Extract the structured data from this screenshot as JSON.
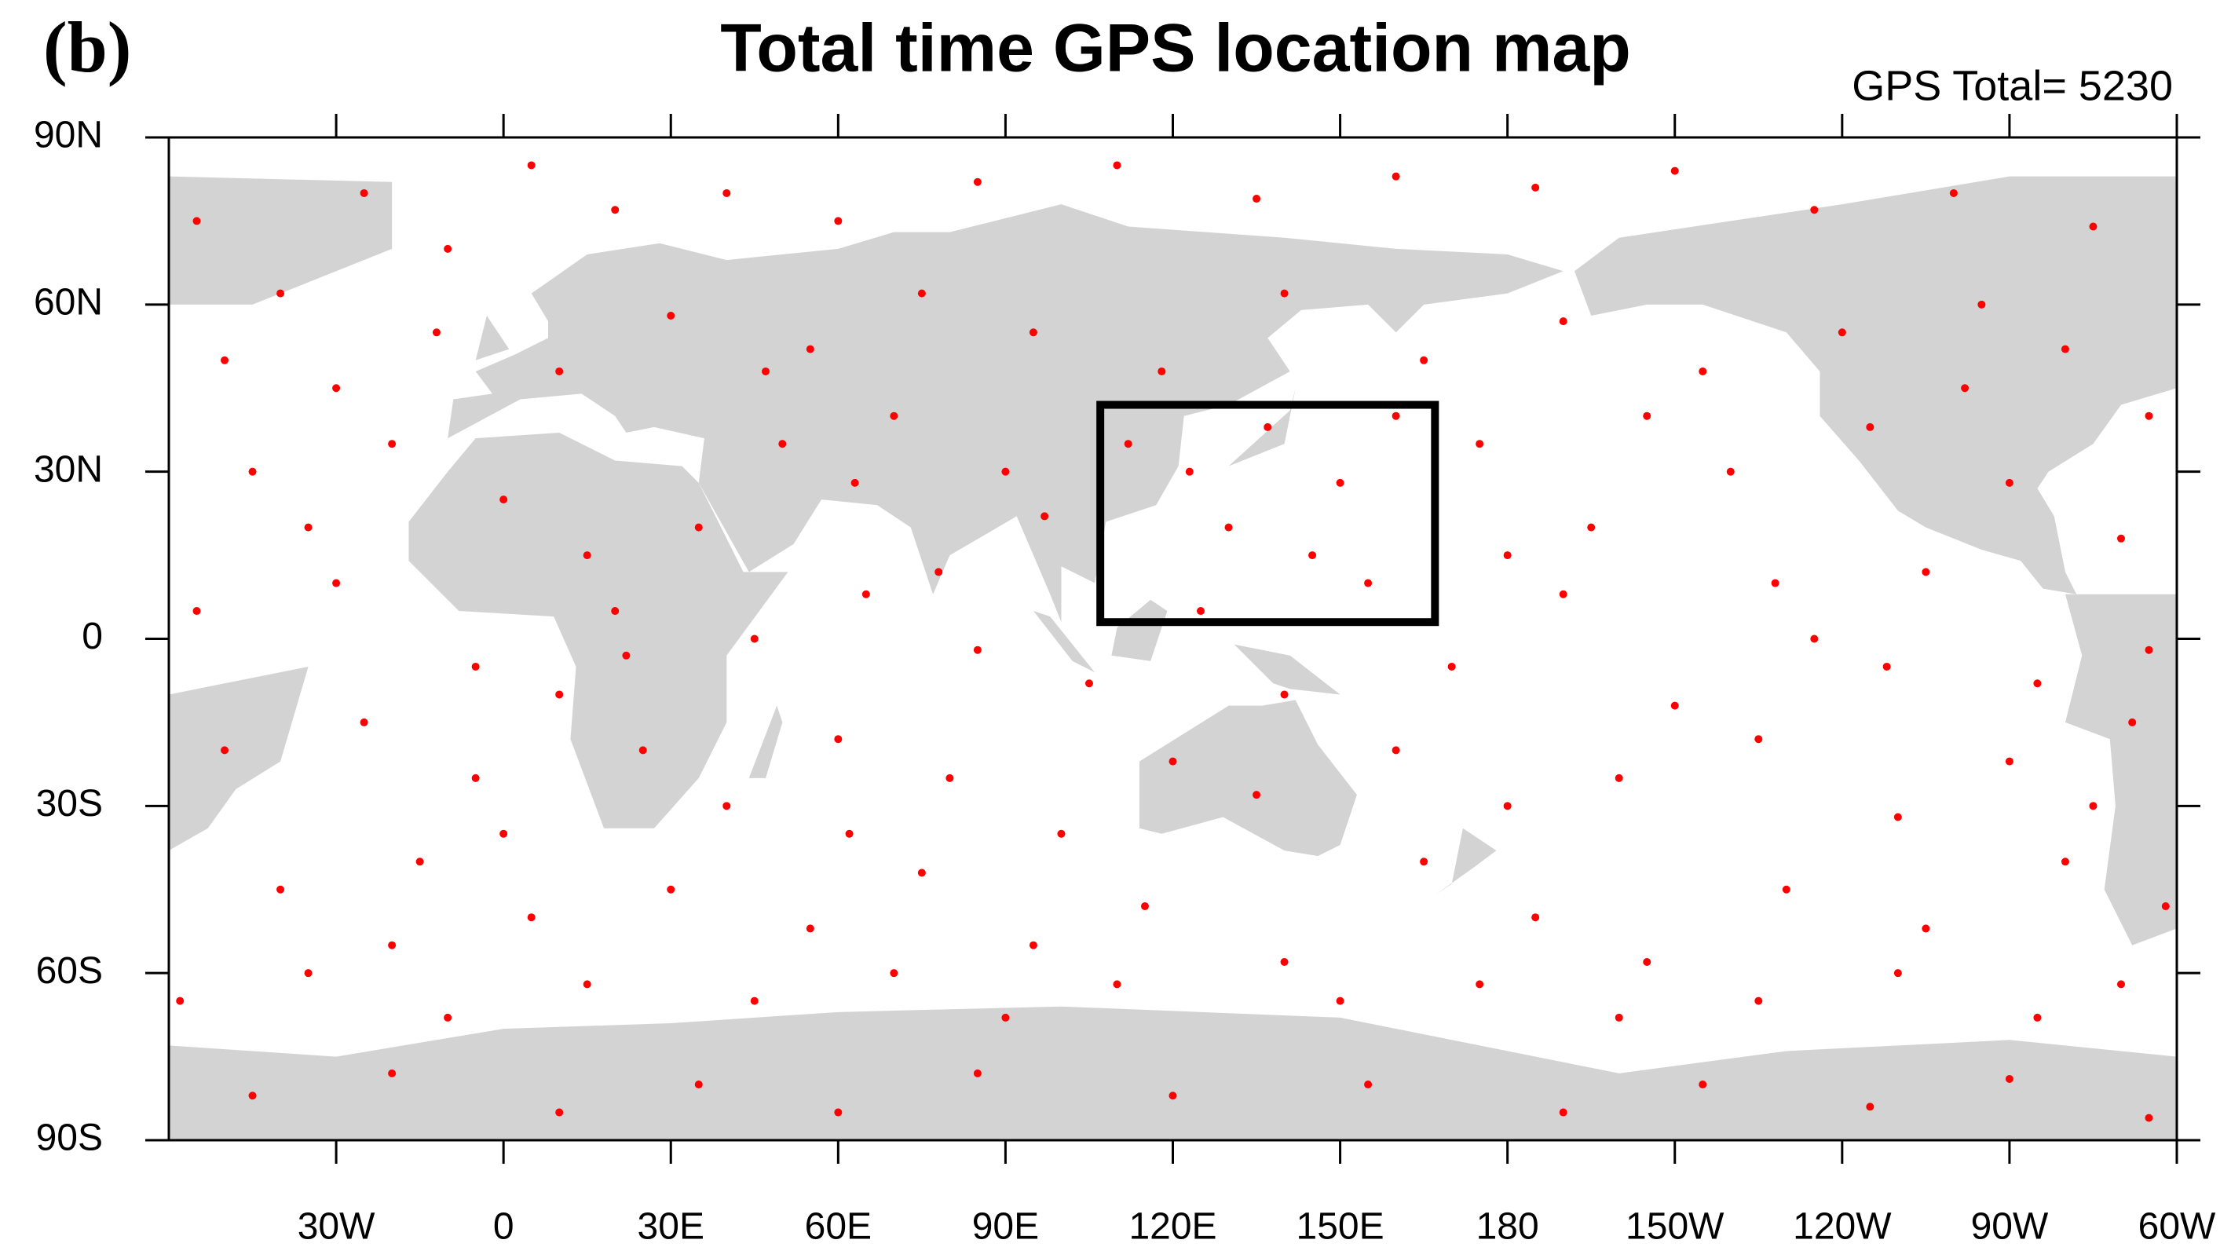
{
  "chart_data": {
    "type": "scatter",
    "panel_label": "(b)",
    "title": "Total time GPS location map",
    "annotation": "GPS Total= 5230",
    "color": "#ff0000",
    "xlim": [
      -60,
      300
    ],
    "ylim": [
      -90,
      90
    ],
    "xticks": [
      {
        "value": -30,
        "label": "30W"
      },
      0,
      {
        "value": 30,
        "label": "30E"
      },
      {
        "value": 60,
        "label": "60E"
      },
      {
        "value": 90,
        "label": "90E"
      },
      {
        "value": 120,
        "label": "120E"
      },
      {
        "value": 150,
        "label": "150E"
      },
      180,
      {
        "value": 210,
        "label": "150W"
      },
      {
        "value": 240,
        "label": "120W"
      },
      {
        "value": 270,
        "label": "90W"
      },
      {
        "value": 300,
        "label": "60W"
      }
    ],
    "yticks": [
      {
        "value": -90,
        "label": "90S"
      },
      {
        "value": -60,
        "label": "60S"
      },
      {
        "value": -30,
        "label": "30S"
      },
      0,
      {
        "value": 30,
        "label": "30N"
      },
      {
        "value": 60,
        "label": "60N"
      },
      {
        "value": 90,
        "label": "90N"
      }
    ],
    "box": {
      "lon": [
        107,
        167
      ],
      "lat": [
        3,
        42
      ]
    },
    "x": [
      -55,
      -40,
      -25,
      -10,
      5,
      20,
      40,
      60,
      85,
      110,
      135,
      160,
      185,
      210,
      235,
      260,
      285,
      -50,
      -30,
      -12,
      10,
      30,
      55,
      75,
      95,
      118,
      140,
      165,
      190,
      215,
      240,
      262,
      280,
      295,
      -45,
      -20,
      0,
      15,
      35,
      50,
      70,
      90,
      112,
      130,
      150,
      155,
      175,
      195,
      220,
      245,
      270,
      290,
      -55,
      -30,
      -5,
      20,
      45,
      65,
      85,
      105,
      125,
      145,
      170,
      190,
      210,
      235,
      255,
      275,
      295,
      -50,
      -25,
      -5,
      25,
      40,
      60,
      80,
      100,
      120,
      135,
      160,
      180,
      200,
      225,
      250,
      270,
      292,
      -40,
      -15,
      5,
      30,
      55,
      75,
      95,
      115,
      140,
      165,
      185,
      205,
      230,
      255,
      280,
      298,
      -58,
      -35,
      -10,
      15,
      45,
      70,
      90,
      110,
      150,
      175,
      200,
      225,
      250,
      275,
      290,
      -45,
      -20,
      10,
      35,
      60,
      85,
      120,
      155,
      190,
      215,
      245,
      270,
      295,
      -35,
      0,
      22,
      47,
      63,
      78,
      97,
      123,
      137,
      160,
      180,
      205,
      228,
      248,
      265,
      285,
      10,
      140,
      62,
      -20
    ],
    "values": [
      75,
      62,
      80,
      70,
      85,
      77,
      80,
      75,
      82,
      85,
      79,
      83,
      81,
      84,
      77,
      80,
      74,
      50,
      45,
      55,
      48,
      58,
      52,
      62,
      55,
      48,
      62,
      50,
      57,
      48,
      55,
      45,
      52,
      40,
      30,
      35,
      25,
      15,
      20,
      35,
      40,
      30,
      35,
      20,
      28,
      10,
      35,
      20,
      30,
      38,
      28,
      18,
      5,
      10,
      -5,
      5,
      0,
      8,
      -2,
      -8,
      5,
      15,
      -5,
      8,
      -12,
      0,
      12,
      -8,
      -2,
      -20,
      -15,
      -25,
      -20,
      -30,
      -18,
      -25,
      -35,
      -22,
      -28,
      -20,
      -30,
      -25,
      -18,
      -32,
      -22,
      -15,
      -45,
      -40,
      -50,
      -45,
      -52,
      -42,
      -55,
      -48,
      -58,
      -40,
      -50,
      -58,
      -45,
      -52,
      -40,
      -48,
      -65,
      -60,
      -68,
      -62,
      -65,
      -60,
      -68,
      -62,
      -65,
      -62,
      -68,
      -65,
      -60,
      -68,
      -62,
      -82,
      -78,
      -85,
      -80,
      -85,
      -78,
      -82,
      -80,
      -85,
      -80,
      -84,
      -79,
      -86,
      20,
      -35,
      -3,
      48,
      28,
      12,
      22,
      30,
      38,
      40,
      15,
      40,
      10,
      -5,
      60,
      -30,
      -10,
      -10,
      -35,
      -55
    ]
  }
}
